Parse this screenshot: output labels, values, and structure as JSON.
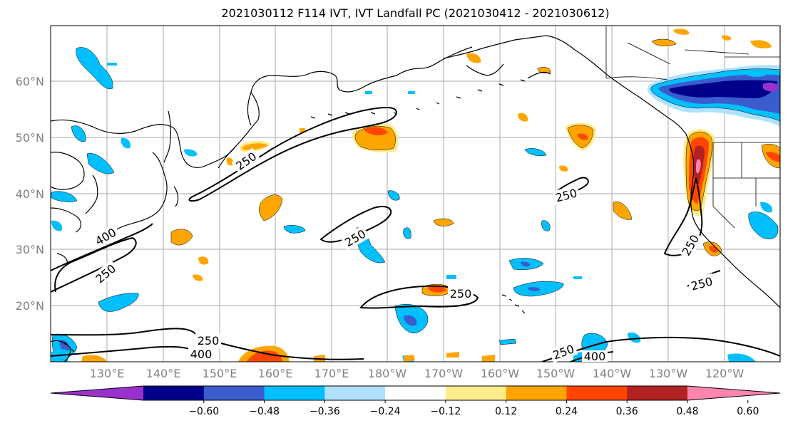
{
  "title": "2021030112 F114 IVT, IVT Landfall PC (2021030412 - 2021030612)",
  "map": {
    "lat_labels": [
      "60°N",
      "50°N",
      "40°N",
      "30°N",
      "20°N"
    ],
    "lon_labels": [
      "130°E",
      "140°E",
      "150°E",
      "160°E",
      "170°E",
      "180°W",
      "170°W",
      "160°W",
      "150°W",
      "140°W",
      "130°W",
      "120°W"
    ],
    "contour_labels": [
      "250",
      "250",
      "250",
      "250",
      "250",
      "250",
      "250",
      "250",
      "250",
      "400",
      "400",
      "400"
    ]
  },
  "colorbar": {
    "colors": [
      "#9932CC",
      "#00008B",
      "#3A5CCC",
      "#00BFFF",
      "#B0E2FF",
      "#FFFFFF",
      "#FFEC8B",
      "#FFA500",
      "#FF4500",
      "#B22222",
      "#FF85AE"
    ],
    "ticks": [
      "−0.60",
      "−0.48",
      "−0.36",
      "−0.24",
      "−0.12",
      "0.12",
      "0.24",
      "0.36",
      "0.48",
      "0.60"
    ]
  }
}
